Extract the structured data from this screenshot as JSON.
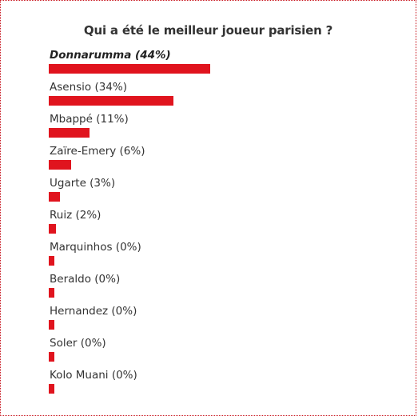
{
  "poll": {
    "title": "Qui a été le meilleur joueur parisien ?",
    "bar_color": "#e0141e",
    "options": [
      {
        "label": "Donnarumma (44%)",
        "percent": 44,
        "selected": true
      },
      {
        "label": "Asensio (34%)",
        "percent": 34,
        "selected": false
      },
      {
        "label": "Mbappé (11%)",
        "percent": 11,
        "selected": false
      },
      {
        "label": "Zaïre-Emery (6%)",
        "percent": 6,
        "selected": false
      },
      {
        "label": "Ugarte (3%)",
        "percent": 3,
        "selected": false
      },
      {
        "label": "Ruiz (2%)",
        "percent": 2,
        "selected": false
      },
      {
        "label": "Marquinhos (0%)",
        "percent": 0,
        "selected": false
      },
      {
        "label": "Beraldo (0%)",
        "percent": 0,
        "selected": false
      },
      {
        "label": "Hernandez (0%)",
        "percent": 0,
        "selected": false
      },
      {
        "label": "Soler (0%)",
        "percent": 0,
        "selected": false
      },
      {
        "label": "Kolo Muani (0%)",
        "percent": 0,
        "selected": false
      }
    ]
  }
}
